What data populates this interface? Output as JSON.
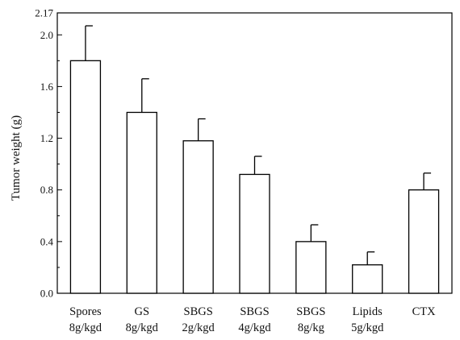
{
  "chart_data": {
    "type": "bar",
    "title": "",
    "xlabel": "",
    "ylabel": "Tumor weight (g)",
    "ylim": [
      0,
      2.17
    ],
    "yticks": [
      "0.0",
      "0.4",
      "0.8",
      "1.2",
      "1.6",
      "2.0",
      "2.17"
    ],
    "ytick_values": [
      0,
      0.4,
      0.8,
      1.2,
      1.6,
      2.0,
      2.17
    ],
    "categories": [
      [
        "Spores",
        "8g/kgd"
      ],
      [
        "GS",
        "8g/kgd"
      ],
      [
        "SBGS",
        "2g/kgd"
      ],
      [
        "SBGS",
        "4g/kgd"
      ],
      [
        "SBGS",
        "8g/kg"
      ],
      [
        "Lipids",
        "5g/kgd"
      ],
      [
        "CTX"
      ]
    ],
    "values": [
      1.8,
      1.4,
      1.18,
      0.92,
      0.4,
      0.22,
      0.8
    ],
    "errors": [
      0.27,
      0.26,
      0.17,
      0.14,
      0.13,
      0.1,
      0.13
    ],
    "grid": false,
    "colors": {
      "bar_fill": "#ffffff",
      "stroke": "#000000"
    }
  }
}
